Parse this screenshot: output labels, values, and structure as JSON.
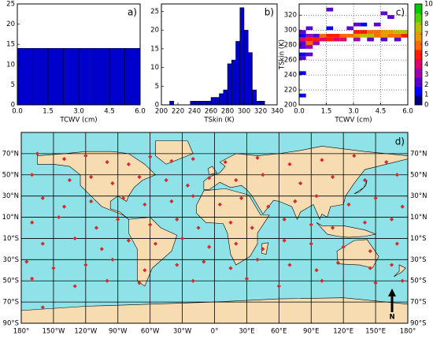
{
  "chart_data": [
    {
      "type": "histogram",
      "annotation": "a)",
      "xlabel": "TCWV (cm)",
      "color": "#0000cc",
      "bins": [
        0,
        0.75,
        1.5,
        2.25,
        3,
        3.75,
        4.5,
        5.25,
        6
      ],
      "values": [
        14,
        14,
        14,
        14,
        14,
        14,
        14,
        14
      ],
      "xlim": [
        0,
        6
      ],
      "ylim": [
        0,
        25
      ],
      "xticks": [
        {
          "value": 0,
          "label": "0.0"
        },
        1.5,
        {
          "value": 3,
          "label": "3.0"
        },
        4.5,
        {
          "value": 6,
          "label": "6.0"
        }
      ],
      "yticks": [
        0,
        5,
        10,
        15,
        20,
        25
      ]
    },
    {
      "type": "histogram",
      "annotation": "b)",
      "xlabel": "TSkin (K)",
      "color": "#0000cc",
      "bins": [
        200,
        205,
        210,
        215,
        220,
        225,
        230,
        235,
        240,
        245,
        250,
        255,
        260,
        265,
        270,
        275,
        280,
        285,
        290,
        295,
        300,
        305,
        310,
        315,
        320,
        325,
        330,
        335,
        340
      ],
      "values": [
        0,
        0,
        1,
        0,
        0,
        0,
        0,
        1,
        1,
        1,
        1,
        1,
        2,
        2,
        3,
        4,
        11,
        12,
        17,
        26,
        20,
        14,
        4,
        1,
        1,
        0,
        0,
        0
      ],
      "xlim": [
        200,
        340
      ],
      "ylim": [
        0,
        27
      ],
      "xticks": [
        200,
        220,
        240,
        260,
        280,
        300,
        320,
        340
      ],
      "yticks": [
        0,
        5,
        10,
        15,
        20,
        25
      ]
    },
    {
      "type": "heatmap",
      "annotation": "c)",
      "xlabel": "TCWV (cm)",
      "ylabel": "TSkin (K)",
      "bin_width": [
        0.375,
        5
      ],
      "x": [
        1.5,
        4.5,
        4.875,
        0.375,
        1.5,
        2.625,
        3.0,
        3.375,
        4.125,
        0,
        0.375,
        0.75,
        1.125,
        1.5,
        1.875,
        2.25,
        2.625,
        3.0,
        3.375,
        3.75,
        4.125,
        4.5,
        4.875,
        5.25,
        5.625,
        0,
        3.0,
        3.375,
        3.75,
        4.125,
        4.5,
        4.875,
        5.25,
        5.625,
        0,
        0.375,
        0.75,
        1.125,
        1.5,
        1.875,
        2.25,
        3.0,
        3.75,
        4.5,
        5.25,
        0,
        0.375,
        0.75,
        0,
        0.375,
        0,
        0.375,
        0,
        0,
        0
      ],
      "y": [
        325,
        320,
        315,
        300,
        300,
        300,
        305,
        305,
        305,
        290,
        290,
        290,
        290,
        290,
        290,
        290,
        290,
        290,
        290,
        290,
        290,
        290,
        290,
        290,
        290,
        295,
        295,
        295,
        295,
        295,
        295,
        295,
        295,
        295,
        285,
        285,
        285,
        285,
        285,
        285,
        285,
        285,
        285,
        285,
        285,
        280,
        280,
        280,
        275,
        275,
        265,
        265,
        240,
        260,
        210
      ],
      "values": [
        2,
        2,
        2,
        2,
        1,
        2,
        2,
        1,
        2,
        1,
        3,
        2,
        6,
        5,
        5,
        6,
        6,
        7,
        8,
        8,
        6,
        7,
        6,
        6,
        5,
        2,
        5,
        5,
        6,
        6,
        7,
        7,
        8,
        8,
        4,
        5,
        5,
        4,
        5,
        4,
        4,
        3,
        2,
        2,
        2,
        2,
        6,
        3,
        2,
        3,
        1,
        2,
        1,
        2,
        1
      ],
      "colormap": [
        "#00007f",
        "#0000ff",
        "#5a00d0",
        "#a000b0",
        "#e0006a",
        "#ff1a00",
        "#ff6a00",
        "#e89a00",
        "#b8c000",
        "#50d000",
        "#00c800"
      ],
      "xlim": [
        0,
        6
      ],
      "ylim": [
        200,
        335
      ],
      "clim": [
        0,
        10
      ],
      "xticks": [
        {
          "value": 0,
          "label": "0.0"
        },
        1.5,
        {
          "value": 3,
          "label": "3.0"
        },
        4.5,
        {
          "value": 6,
          "label": "6.0"
        }
      ],
      "yticks": [
        200,
        220,
        240,
        260,
        280,
        300,
        320
      ],
      "cticks": [
        0,
        1,
        2,
        3,
        4,
        5,
        6,
        7,
        8,
        9,
        10
      ],
      "grid": true
    },
    {
      "type": "map",
      "annotation": "d)",
      "north_label": "N",
      "color": "#d42a2a",
      "grid": true,
      "x": [
        -165,
        -140,
        -120,
        -100,
        -80,
        -60,
        -40,
        -20,
        10,
        40,
        70,
        100,
        130,
        160,
        -170,
        -135,
        -115,
        -95,
        -70,
        -45,
        -25,
        -5,
        20,
        45,
        80,
        110,
        140,
        170,
        -160,
        -140,
        -115,
        -85,
        -65,
        -40,
        -20,
        5,
        25,
        50,
        75,
        95,
        125,
        150,
        175,
        -170,
        -145,
        -110,
        -90,
        -60,
        -35,
        -15,
        15,
        35,
        65,
        90,
        110,
        140,
        165,
        -160,
        -130,
        -105,
        -80,
        -55,
        -30,
        -5,
        20,
        45,
        65,
        90,
        120,
        145,
        170,
        -175,
        -150,
        -120,
        -95,
        -65,
        -35,
        -10,
        15,
        40,
        70,
        95,
        115,
        145,
        165,
        -170,
        -130,
        -100,
        -70,
        -20,
        30,
        60,
        100,
        150,
        175,
        -160
      ],
      "y": [
        70,
        65,
        68,
        62,
        60,
        67,
        63,
        65,
        62,
        66,
        60,
        64,
        68,
        62,
        50,
        45,
        48,
        42,
        48,
        45,
        40,
        47,
        45,
        50,
        42,
        48,
        45,
        50,
        28,
        20,
        25,
        28,
        22,
        25,
        30,
        22,
        28,
        20,
        25,
        30,
        22,
        28,
        20,
        5,
        10,
        0,
        8,
        3,
        8,
        0,
        5,
        0,
        8,
        3,
        0,
        5,
        8,
        -15,
        -10,
        -20,
        -12,
        -15,
        -10,
        -18,
        -15,
        -20,
        -12,
        -15,
        -18,
        -22,
        -15,
        -32,
        -38,
        -35,
        -30,
        -40,
        -35,
        -32,
        -38,
        -30,
        -35,
        -40,
        -33,
        -38,
        -35,
        -48,
        -55,
        -50,
        -52,
        -50,
        -48,
        -55,
        -50,
        -52,
        -50,
        -75
      ],
      "xlim": [
        -180,
        180
      ],
      "ylim": [
        -90,
        90
      ],
      "xticks": [
        {
          "value": -180,
          "label": "180°"
        },
        {
          "value": -150,
          "label": "150°W"
        },
        {
          "value": -120,
          "label": "120°W"
        },
        {
          "value": -90,
          "label": "90°W"
        },
        {
          "value": -60,
          "label": "60°W"
        },
        {
          "value": -30,
          "label": "30°W"
        },
        {
          "value": 0,
          "label": "0°"
        },
        {
          "value": 30,
          "label": "30°E"
        },
        {
          "value": 60,
          "label": "60°E"
        },
        {
          "value": 90,
          "label": "90°E"
        },
        {
          "value": 120,
          "label": "120°E"
        },
        {
          "value": 150,
          "label": "150°E"
        },
        {
          "value": 180,
          "label": "180°"
        }
      ],
      "yticks": [
        {
          "value": -90,
          "label": "90°S"
        },
        {
          "value": -70,
          "label": "70°S"
        },
        {
          "value": -50,
          "label": "50°S"
        },
        {
          "value": -30,
          "label": "30°S"
        },
        {
          "value": -10,
          "label": "10°S"
        },
        {
          "value": 10,
          "label": "10°N"
        },
        {
          "value": 30,
          "label": "30°N"
        },
        {
          "value": 50,
          "label": "50°N"
        },
        {
          "value": 70,
          "label": "70°N"
        }
      ]
    }
  ]
}
